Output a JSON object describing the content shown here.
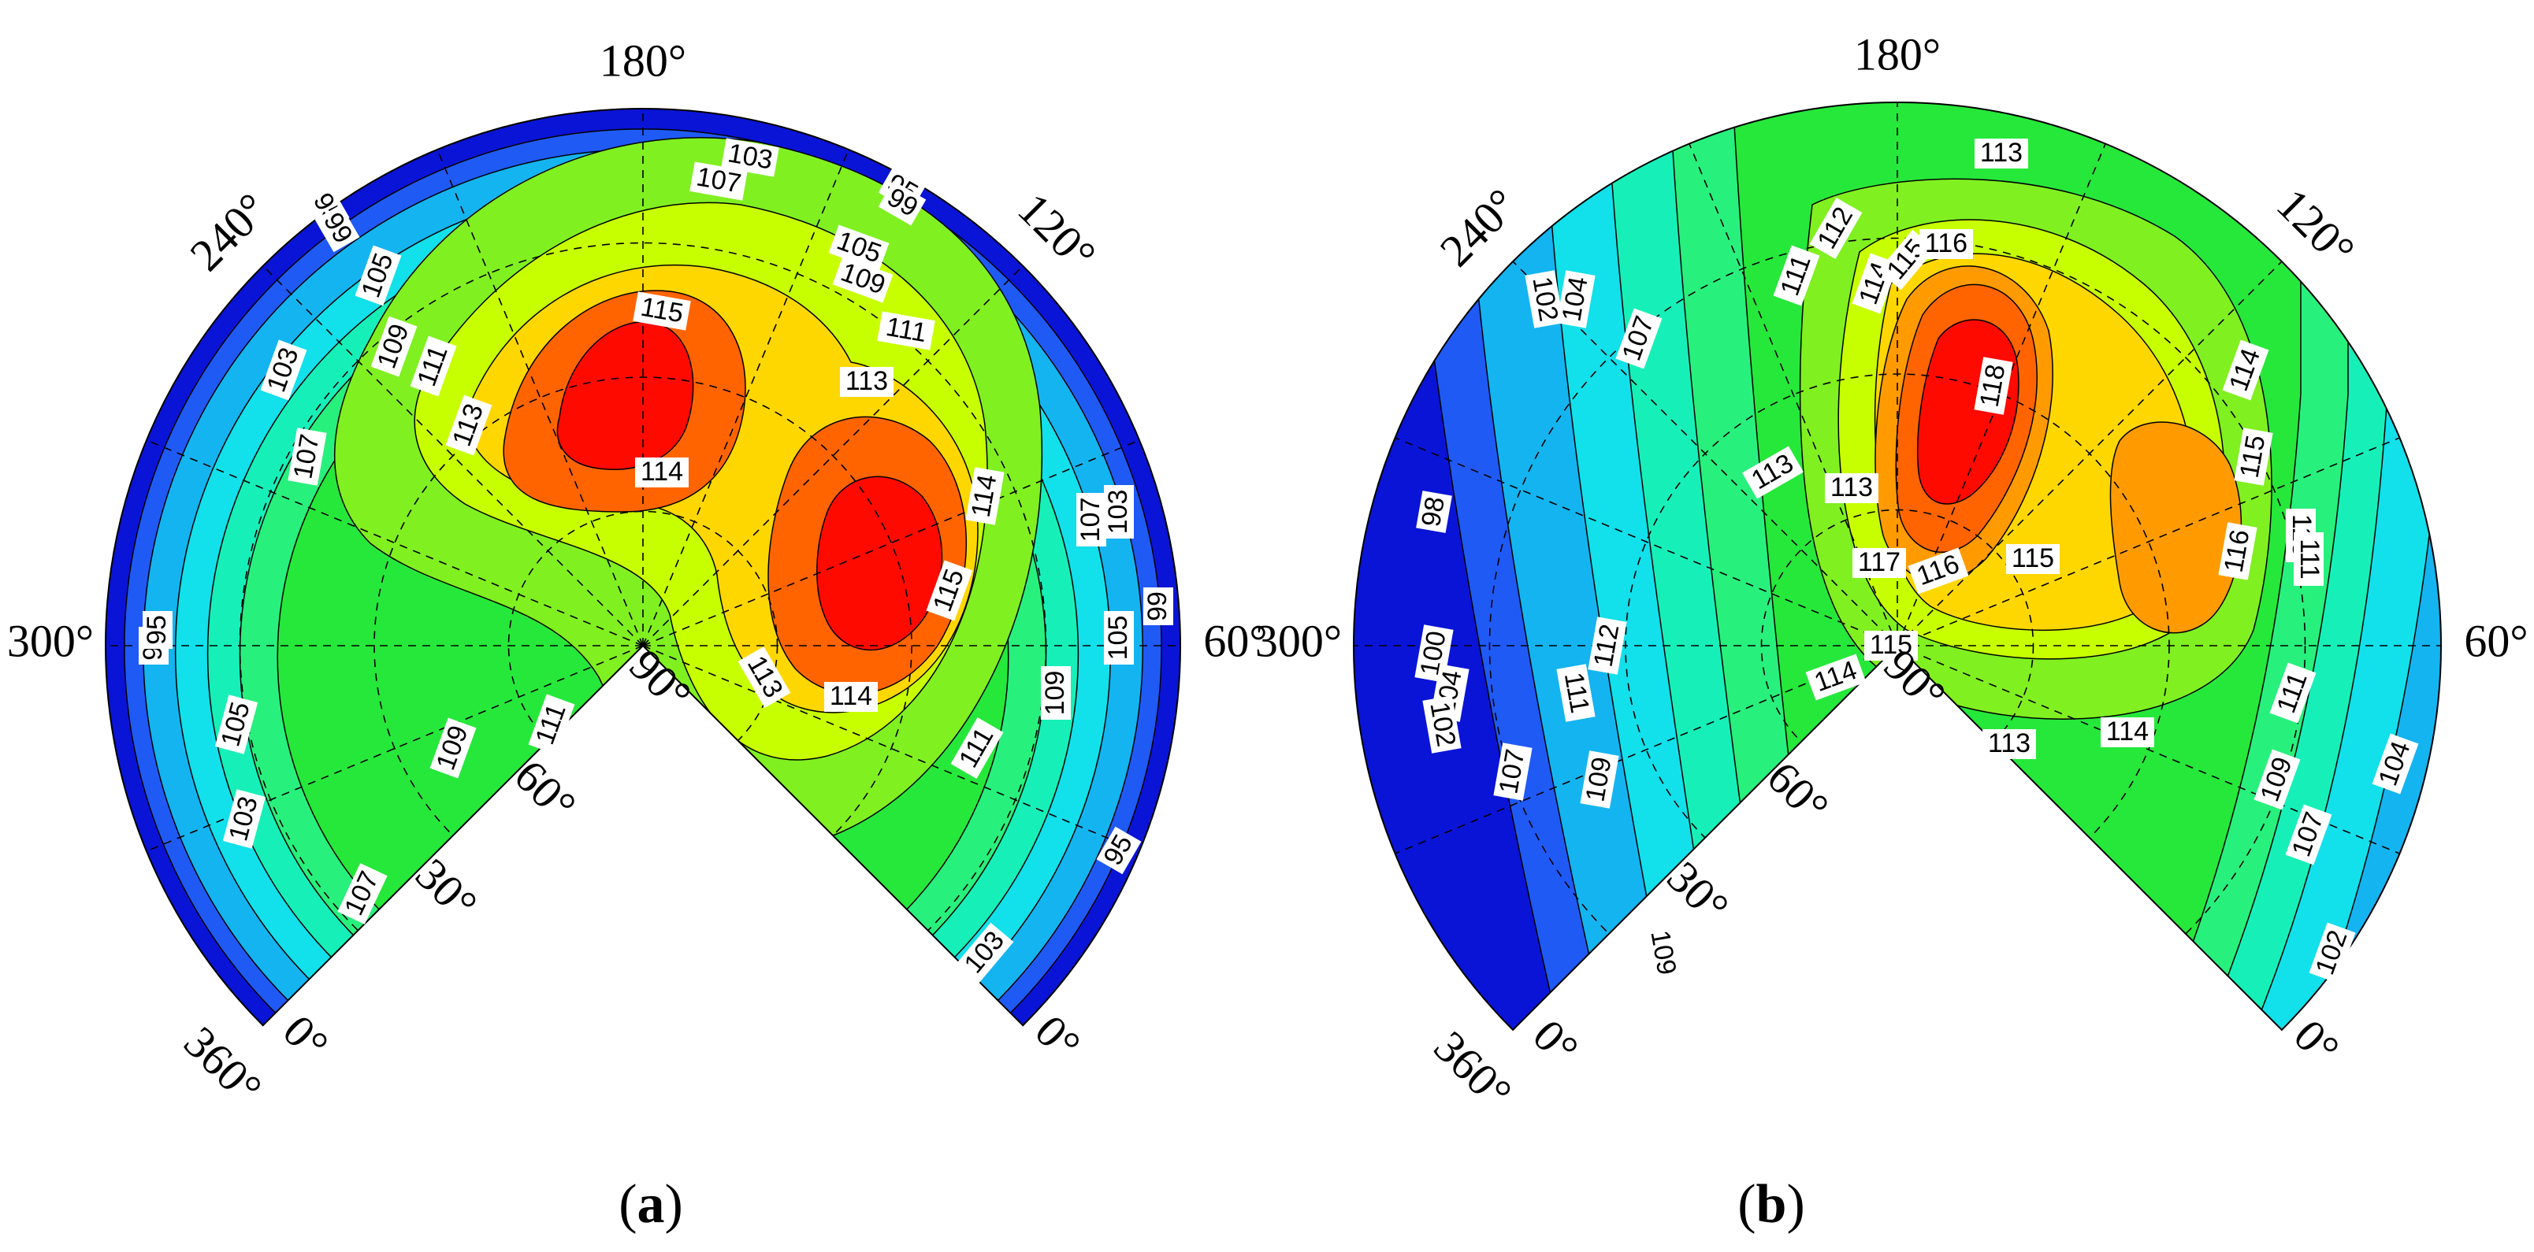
{
  "chart_data": [
    {
      "type": "heatmap",
      "panel": "(a)",
      "panel_letter": "a",
      "angle_tick_labels": [
        "0°",
        "30°",
        "60°",
        "90°",
        "120°",
        "180°",
        "240°",
        "300°",
        "360°"
      ],
      "contour_levels": [
        95,
        99,
        103,
        105,
        107,
        109,
        111,
        113,
        114,
        115
      ],
      "contour_labels_shown": [
        95,
        99,
        103,
        105,
        107,
        109,
        111,
        113,
        114,
        115
      ],
      "peaks": [
        {
          "direction_deg": 195,
          "value": 115
        },
        {
          "direction_deg": 110,
          "value": 115
        }
      ],
      "grid": true
    },
    {
      "type": "heatmap",
      "panel": "(b)",
      "panel_letter": "b",
      "angle_tick_labels": [
        "0°",
        "30°",
        "60°",
        "90°",
        "120°",
        "180°",
        "240°",
        "300°",
        "360°"
      ],
      "contour_levels": [
        98,
        100,
        102,
        104,
        107,
        109,
        111,
        112,
        113,
        114,
        115,
        116,
        117,
        118
      ],
      "contour_labels_shown": [
        98,
        100,
        102,
        104,
        107,
        109,
        111,
        112,
        113,
        114,
        115,
        116,
        117,
        118
      ],
      "peaks": [
        {
          "direction_deg": 160,
          "value": 118
        },
        {
          "direction_deg": 100,
          "value": 116
        }
      ],
      "grid": true
    }
  ],
  "colors": {
    "level_blue_dark": "#0a14d6",
    "level_blue": "#1f5af5",
    "level_sky": "#14b4f0",
    "level_cyan": "#12e0ea",
    "level_aqua": "#16f0b8",
    "level_green_light": "#28f07c",
    "level_green": "#26e83a",
    "level_green_yellow": "#80f020",
    "level_lime": "#c8ff00",
    "level_yellow": "#ffd700",
    "level_orange": "#ff9b00",
    "level_orange_dark": "#ff6400",
    "level_red": "#ff0a00"
  }
}
